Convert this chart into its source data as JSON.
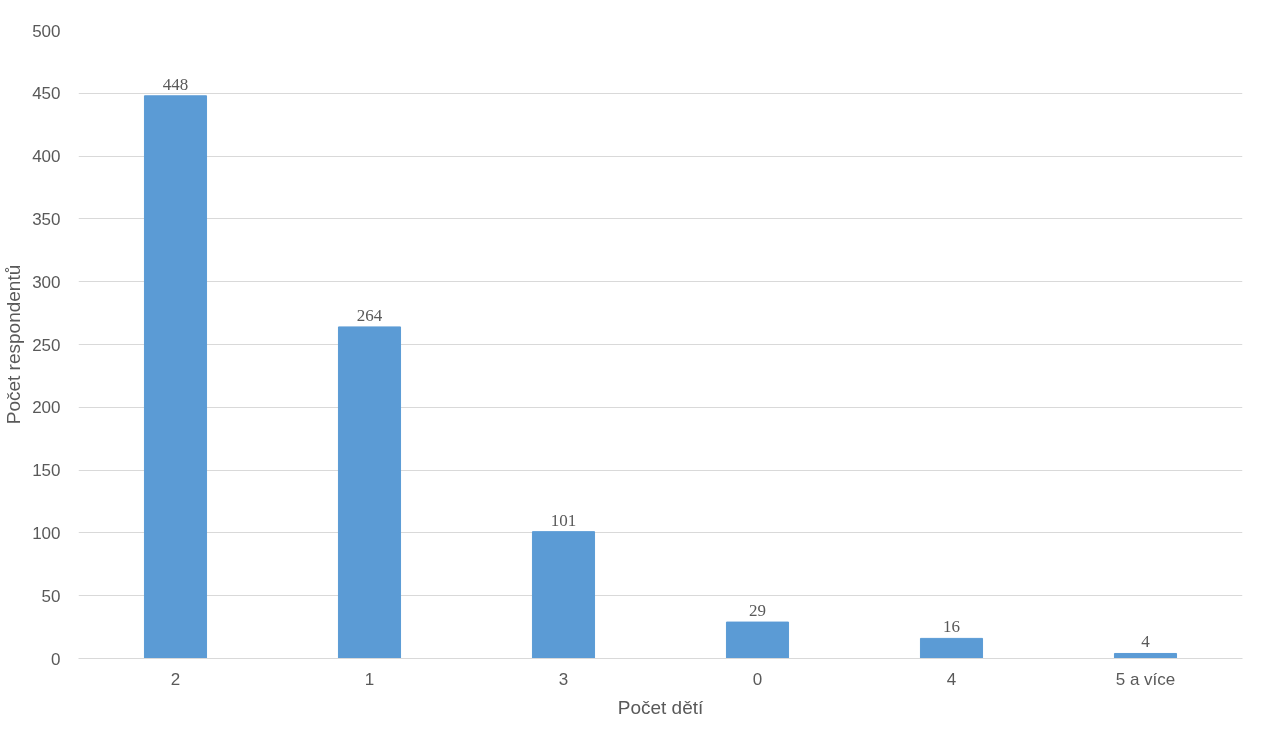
{
  "chart_data": {
    "type": "bar",
    "xlabel": "Počet dětí",
    "ylabel": "Počet respondentů",
    "categories": [
      "2",
      "1",
      "3",
      "0",
      "4",
      "5 a více"
    ],
    "values": [
      448,
      264,
      101,
      29,
      16,
      4
    ],
    "color": "#5b9bd5",
    "ylim": [
      0,
      500
    ],
    "yticks": [
      0,
      50,
      100,
      150,
      200,
      250,
      300,
      350,
      400,
      450,
      500
    ],
    "grid": "y",
    "data_labels": true
  }
}
